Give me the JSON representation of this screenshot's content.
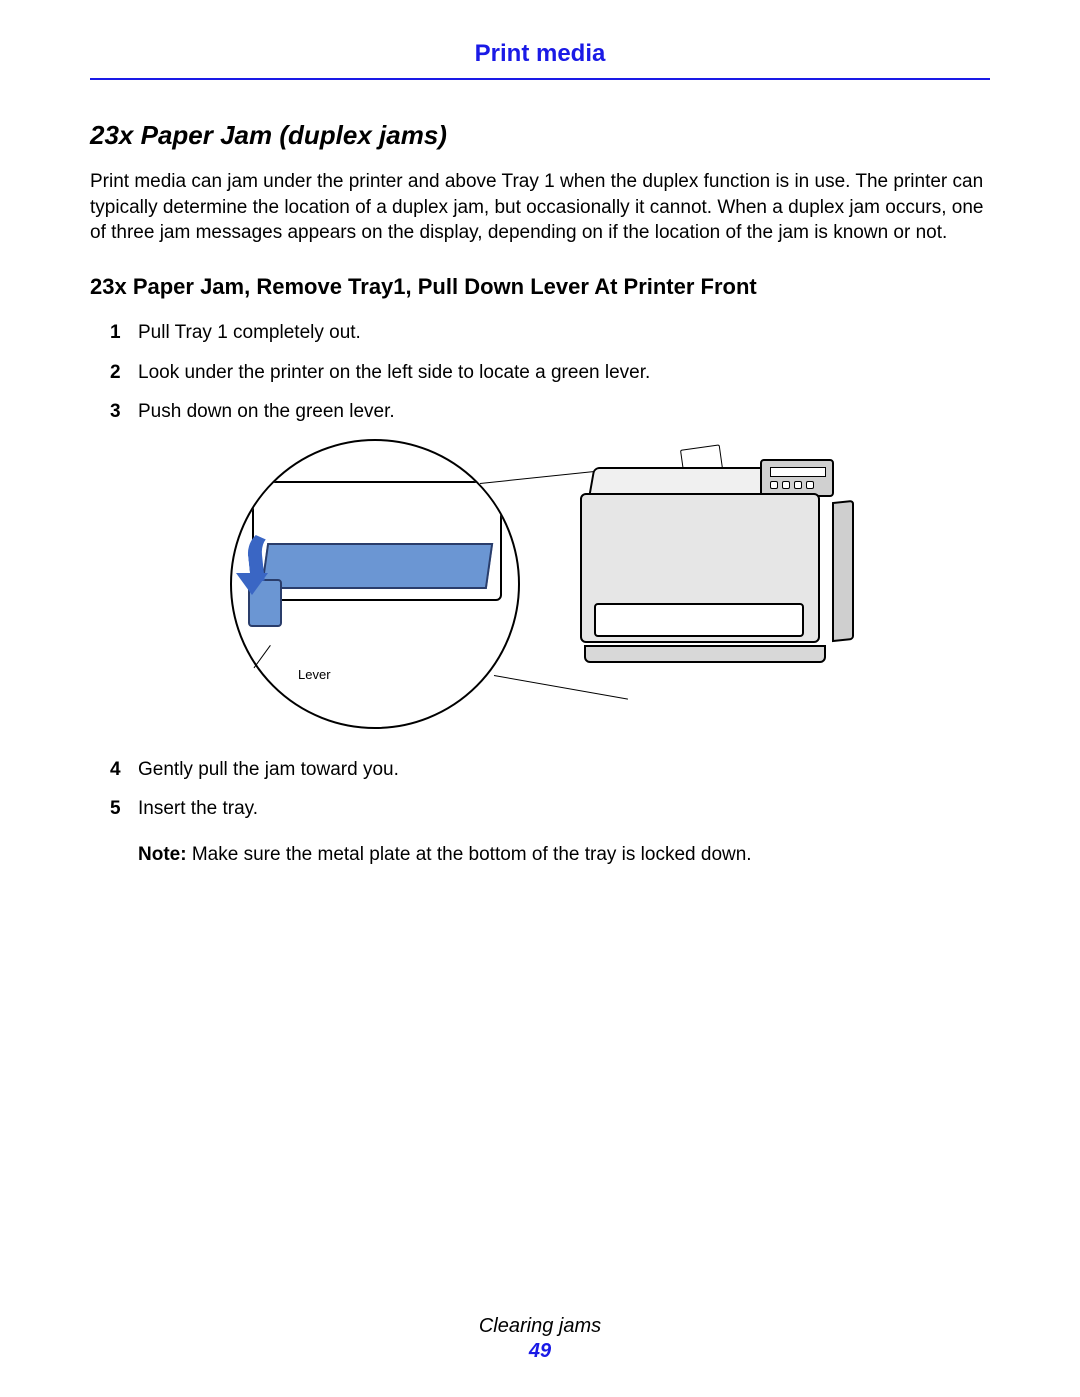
{
  "header": {
    "title": "Print media",
    "rule_color": "#1a1ae6"
  },
  "section": {
    "title": "23x Paper Jam (duplex jams)",
    "intro": "Print media can jam under the printer and above Tray 1 when the duplex function is in use. The printer can typically determine the location of a duplex jam, but occasionally it cannot. When a duplex jam occurs, one of three jam messages appears on the display, depending on if the location of the jam is known or not."
  },
  "subsection": {
    "title": "23x Paper Jam, Remove Tray1, Pull Down Lever At Printer Front",
    "steps": [
      {
        "n": "1",
        "text": "Pull Tray 1 completely out."
      },
      {
        "n": "2",
        "text": "Look under the printer on the left side to locate a green lever."
      },
      {
        "n": "3",
        "text": "Push down on the green lever."
      },
      {
        "n": "4",
        "text": "Gently pull the jam toward you."
      },
      {
        "n": "5",
        "text": "Insert the tray."
      }
    ],
    "figure": {
      "lever_label": "Lever"
    },
    "note": {
      "label": "Note:",
      "text": " Make sure the metal plate at the bottom of the tray is locked down."
    }
  },
  "footer": {
    "title": "Clearing jams",
    "page": "49"
  },
  "colors": {
    "accent": "#1a1ae6",
    "panel_blue": "#6b96d3",
    "arrow_blue": "#3a66c4",
    "printer_body": "#e6e6e6"
  }
}
